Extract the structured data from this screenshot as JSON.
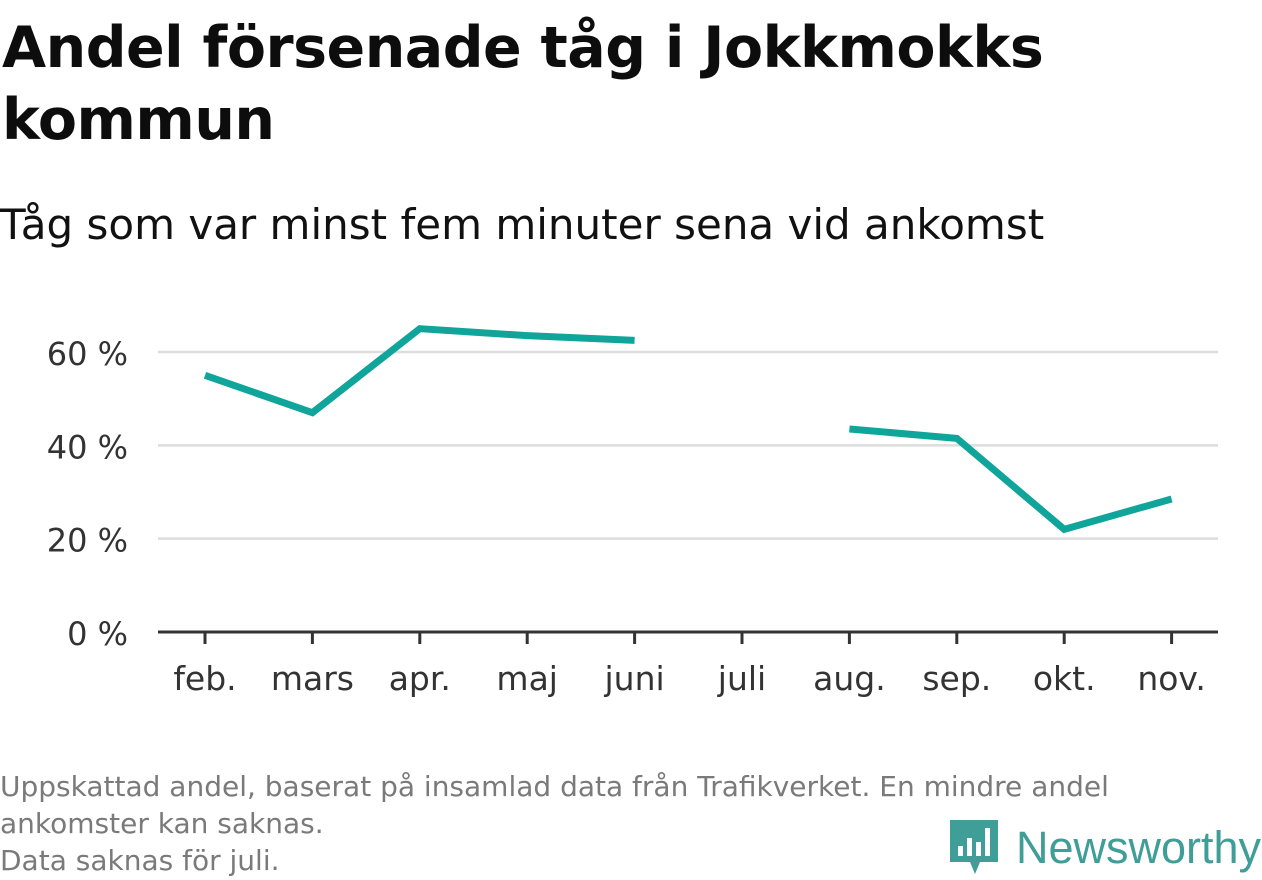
{
  "header": {
    "title": "Andel försenade tåg i Jokkmokks kommun",
    "subtitle": "Tåg som var minst fem minuter sena vid ankomst"
  },
  "footer": {
    "note_line1": "Uppskattad andel, baserat på insamlad data från Trafikverket. En mindre andel",
    "note_line2": "ankomster kan saknas.",
    "note_line3": "Data saknas för juli.",
    "brand": "Newsworthy",
    "brand_icon": "bar-chart-speech-bubble-icon",
    "brand_color": "#3f9e98"
  },
  "chart_data": {
    "type": "line",
    "categories": [
      "feb.",
      "mars",
      "apr.",
      "maj",
      "juni",
      "juli",
      "aug.",
      "sep.",
      "okt.",
      "nov."
    ],
    "series": [
      {
        "values": [
          55,
          47,
          65,
          63.5,
          62.5,
          null,
          43.5,
          41.5,
          22,
          28.5
        ],
        "color": "#0fa59a"
      }
    ],
    "y_ticks": [
      0,
      20,
      40,
      60
    ],
    "y_tick_labels": [
      "0 %",
      "20 %",
      "40 %",
      "60 %"
    ],
    "ylim": [
      0,
      70
    ],
    "grid": true,
    "legend": "none",
    "gridline_color": "#dddddd",
    "axis_color": "#333333"
  }
}
